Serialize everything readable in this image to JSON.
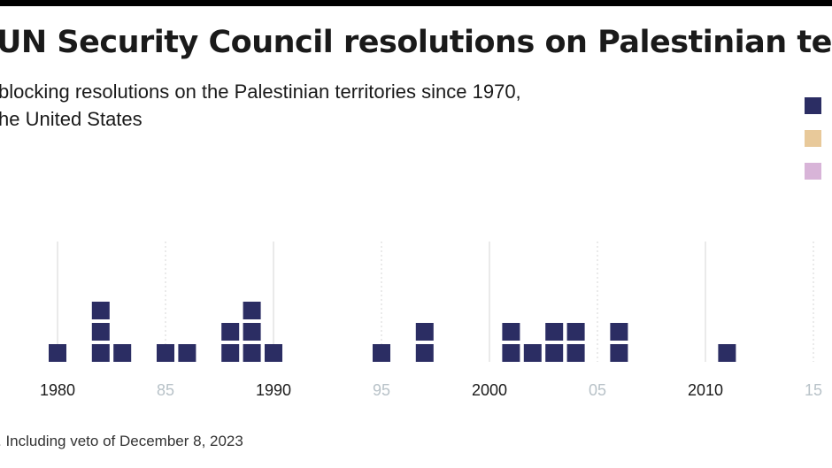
{
  "title": "UN Security Council resolutions on Palestinian terr",
  "subtitle": "blocking resolutions on the Palestinian territories since 1970,\nhe United States",
  "note": ". Including veto of December 8, 2023",
  "legend": {
    "items": [
      {
        "color": "#2b2d63"
      },
      {
        "color": "#e8c99a"
      },
      {
        "color": "#d8b4d8"
      }
    ]
  },
  "colors": {
    "square": "#2b2d63",
    "major_tick": "#1a1a1a",
    "minor_tick": "#b8c2c8",
    "grid": "#d6d6d6"
  },
  "chart_data": {
    "type": "bar",
    "x_unit": "year",
    "tick_labels": [
      {
        "year": 1980,
        "label": "1980",
        "major": true
      },
      {
        "year": 1985,
        "label": "85",
        "major": false
      },
      {
        "year": 1990,
        "label": "1990",
        "major": true
      },
      {
        "year": 1995,
        "label": "95",
        "major": false
      },
      {
        "year": 2000,
        "label": "2000",
        "major": true
      },
      {
        "year": 2005,
        "label": "05",
        "major": false
      },
      {
        "year": 2010,
        "label": "2010",
        "major": true
      },
      {
        "year": 2015,
        "label": "15",
        "major": false
      }
    ],
    "series": [
      {
        "data": [
          {
            "year": 1980,
            "count": 1
          },
          {
            "year": 1982,
            "count": 3
          },
          {
            "year": 1983,
            "count": 1
          },
          {
            "year": 1985,
            "count": 1
          },
          {
            "year": 1986,
            "count": 1
          },
          {
            "year": 1988,
            "count": 2
          },
          {
            "year": 1989,
            "count": 3
          },
          {
            "year": 1990,
            "count": 1
          },
          {
            "year": 1995,
            "count": 1
          },
          {
            "year": 1997,
            "count": 2
          },
          {
            "year": 2001,
            "count": 2
          },
          {
            "year": 2002,
            "count": 1
          },
          {
            "year": 2003,
            "count": 2
          },
          {
            "year": 2004,
            "count": 2
          },
          {
            "year": 2006,
            "count": 2
          },
          {
            "year": 2011,
            "count": 1
          }
        ]
      }
    ]
  }
}
